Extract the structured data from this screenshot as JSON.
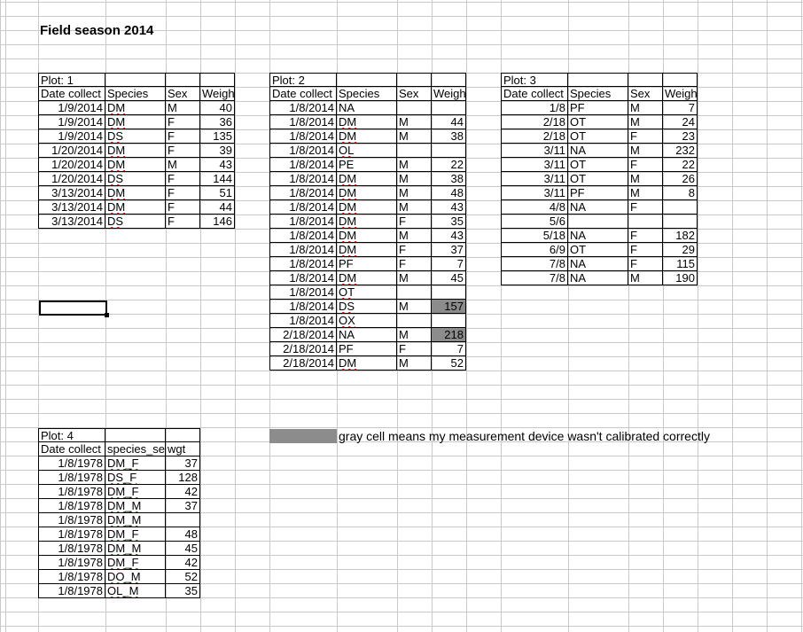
{
  "sheet_title": "Field season 2014",
  "note": "gray cell means my measurement device wasn't calibrated correctly",
  "plots": [
    {
      "label": "Plot: 1",
      "headers": [
        "Date collect",
        "Species",
        "Sex",
        "Weight"
      ],
      "rows": [
        [
          "1/9/2014",
          "DM",
          "M",
          "40"
        ],
        [
          "1/9/2014",
          "DM",
          "F",
          "36"
        ],
        [
          "1/9/2014",
          "DS",
          "F",
          "135"
        ],
        [
          "1/20/2014",
          "DM",
          "F",
          "39"
        ],
        [
          "1/20/2014",
          "DM",
          "M",
          "43"
        ],
        [
          "1/20/2014",
          "DS",
          "F",
          "144"
        ],
        [
          "3/13/2014",
          "DM",
          "F",
          "51"
        ],
        [
          "3/13/2014",
          "DM",
          "F",
          "44"
        ],
        [
          "3/13/2014",
          "DS",
          "F",
          "146"
        ]
      ]
    },
    {
      "label": "Plot: 2",
      "headers": [
        "Date collect",
        "Species",
        "Sex",
        "Weight"
      ],
      "rows": [
        [
          "1/8/2014",
          "NA",
          "",
          ""
        ],
        [
          "1/8/2014",
          "DM",
          "M",
          "44"
        ],
        [
          "1/8/2014",
          "DM",
          "M",
          "38"
        ],
        [
          "1/8/2014",
          "OL",
          "",
          ""
        ],
        [
          "1/8/2014",
          "PE",
          "M",
          "22"
        ],
        [
          "1/8/2014",
          "DM",
          "M",
          "38"
        ],
        [
          "1/8/2014",
          "DM",
          "M",
          "48"
        ],
        [
          "1/8/2014",
          "DM",
          "M",
          "43"
        ],
        [
          "1/8/2014",
          "DM",
          "F",
          "35"
        ],
        [
          "1/8/2014",
          "DM",
          "M",
          "43"
        ],
        [
          "1/8/2014",
          "DM",
          "F",
          "37"
        ],
        [
          "1/8/2014",
          "PF",
          "F",
          "7"
        ],
        [
          "1/8/2014",
          "DM",
          "M",
          "45"
        ],
        [
          "1/8/2014",
          "OT",
          "",
          ""
        ],
        [
          "1/8/2014",
          "DS",
          "M",
          "157"
        ],
        [
          "1/8/2014",
          "OX",
          "",
          ""
        ],
        [
          "2/18/2014",
          "NA",
          "M",
          "218"
        ],
        [
          "2/18/2014",
          "PF",
          "F",
          "7"
        ],
        [
          "2/18/2014",
          "DM",
          "M",
          "52"
        ]
      ],
      "gray_rows": [
        14,
        16
      ]
    },
    {
      "label": "Plot: 3",
      "headers": [
        "Date collect",
        "Species",
        "Sex",
        "Weight"
      ],
      "rows": [
        [
          "1/8",
          "PF",
          "M",
          "7"
        ],
        [
          "2/18",
          "OT",
          "M",
          "24"
        ],
        [
          "2/18",
          "OT",
          "F",
          "23"
        ],
        [
          "3/11",
          "NA",
          "M",
          "232"
        ],
        [
          "3/11",
          "OT",
          "F",
          "22"
        ],
        [
          "3/11",
          "OT",
          "M",
          "26"
        ],
        [
          "3/11",
          "PF",
          "M",
          "8"
        ],
        [
          "4/8",
          "NA",
          "F",
          ""
        ],
        [
          "5/6",
          "",
          "",
          ""
        ],
        [
          "5/18",
          "NA",
          "F",
          "182"
        ],
        [
          "6/9",
          "OT",
          "F",
          "29"
        ],
        [
          "7/8",
          "NA",
          "F",
          "115"
        ],
        [
          "7/8",
          "NA",
          "M",
          "190"
        ]
      ]
    },
    {
      "label": "Plot: 4",
      "headers": [
        "Date collect",
        "species_sex",
        "wgt"
      ],
      "rows": [
        [
          "1/8/1978",
          "DM_F",
          "37"
        ],
        [
          "1/8/1978",
          "DS_F",
          "128"
        ],
        [
          "1/8/1978",
          "DM_F",
          "42"
        ],
        [
          "1/8/1978",
          "DM_M",
          "37"
        ],
        [
          "1/8/1978",
          "DM_M",
          ""
        ],
        [
          "1/8/1978",
          "DM_F",
          "48"
        ],
        [
          "1/8/1978",
          "DM_M",
          "45"
        ],
        [
          "1/8/1978",
          "DM_F",
          "42"
        ],
        [
          "1/8/1978",
          "DO_M",
          "52"
        ],
        [
          "1/8/1978",
          "OL_M",
          "35"
        ]
      ]
    }
  ]
}
